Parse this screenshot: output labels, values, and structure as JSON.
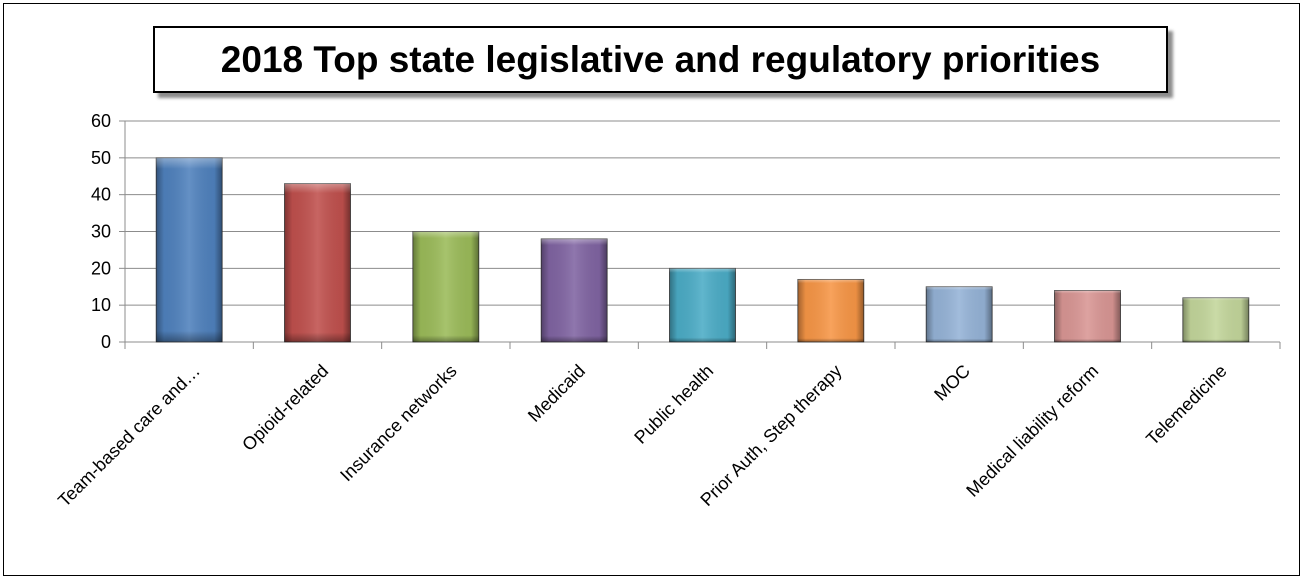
{
  "chart_data": {
    "type": "bar",
    "title": "2018 Top state legislative and regulatory priorities",
    "categories": [
      "Team-based care and…",
      "Opioid-related",
      "Insurance networks",
      "Medicaid",
      "Public health",
      "Prior Auth, Step therapy",
      "MOC",
      "Medical liability reform",
      "Telemedicine"
    ],
    "values": [
      50,
      43,
      30,
      28,
      20,
      17,
      15,
      14,
      12
    ],
    "colors": [
      "#4f81bd",
      "#c0504d",
      "#9bbb59",
      "#8064a2",
      "#4bacc6",
      "#f79646",
      "#95b3d7",
      "#d99694",
      "#c3d69b"
    ],
    "ylim": [
      0,
      60
    ],
    "yticks": [
      0,
      10,
      20,
      30,
      40,
      50,
      60
    ],
    "xlabel": "",
    "ylabel": "",
    "grid": true,
    "legend": "none"
  }
}
